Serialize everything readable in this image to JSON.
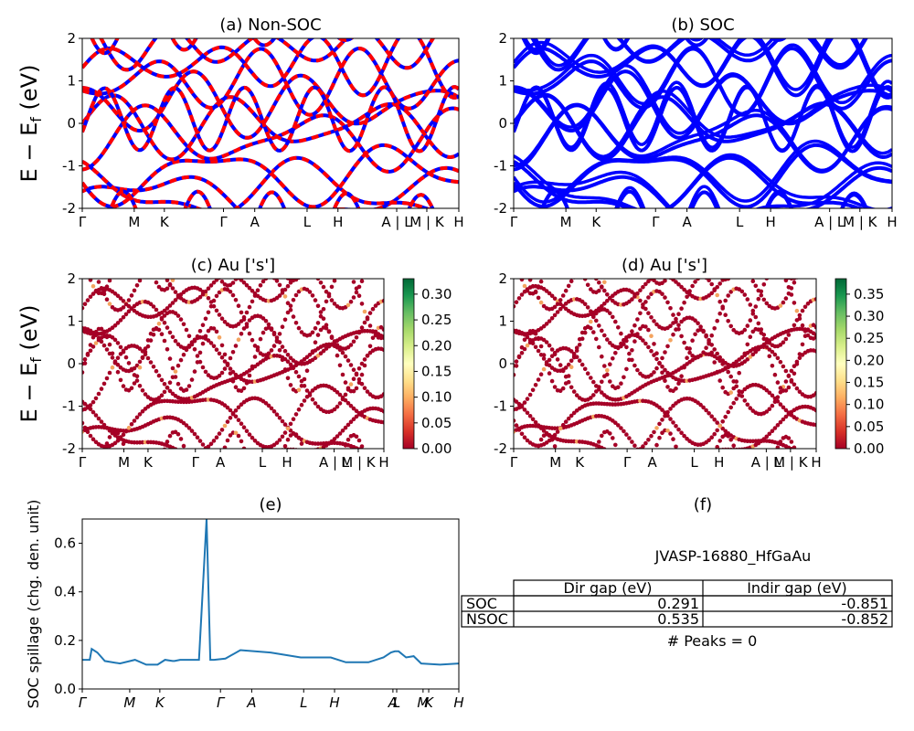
{
  "chart_data": [
    {
      "id": "a",
      "type": "line",
      "title": "(a) Non-SOC",
      "ylabel": "E − E_f (eV)",
      "ylim": [
        -2,
        2
      ],
      "yticks": [
        -2,
        -1,
        0,
        1,
        2
      ],
      "xticks": [
        "Γ",
        "M",
        "K",
        "Γ",
        "A",
        "L",
        "H",
        "A | L",
        "M | K",
        "H"
      ],
      "series": [
        {
          "color": "#0000ff"
        },
        {
          "color": "#ff0000",
          "dashed": true
        }
      ]
    },
    {
      "id": "b",
      "type": "line",
      "title": "(b) SOC",
      "ylim": [
        -2,
        2
      ],
      "yticks": [
        -2,
        -1,
        0,
        1,
        2
      ],
      "xticks": [
        "Γ",
        "M",
        "K",
        "Γ",
        "A",
        "L",
        "H",
        "A | L",
        "M | K",
        "H"
      ],
      "series": [
        {
          "color": "#0000ff"
        }
      ]
    },
    {
      "id": "c",
      "type": "scatter",
      "title": "(c)  Au ['s']",
      "ylabel": "E − E_f (eV)",
      "ylim": [
        -2,
        2
      ],
      "yticks": [
        -2,
        -1,
        0,
        1,
        2
      ],
      "xticks": [
        "Γ",
        "M",
        "K",
        "Γ",
        "A",
        "L",
        "H",
        "A | L",
        "M | K",
        "H"
      ],
      "colorbar": {
        "ticks": [
          "0.00",
          "0.05",
          "0.10",
          "0.15",
          "0.20",
          "0.25",
          "0.30"
        ],
        "max": 0.33
      }
    },
    {
      "id": "d",
      "type": "scatter",
      "title": "(d) Au ['s']",
      "ylim": [
        -2,
        2
      ],
      "yticks": [
        -2,
        -1,
        0,
        1,
        2
      ],
      "xticks": [
        "Γ",
        "M",
        "K",
        "Γ",
        "A",
        "L",
        "H",
        "A | L",
        "M | K",
        "H"
      ],
      "colorbar": {
        "ticks": [
          "0.00",
          "0.05",
          "0.10",
          "0.15",
          "0.20",
          "0.25",
          "0.30",
          "0.35"
        ],
        "max": 0.385
      }
    },
    {
      "id": "e",
      "type": "line",
      "title": "(e)",
      "ylabel": "SOC spillage (chg. den. unit)",
      "ylim": [
        0,
        0.7
      ],
      "yticks": [
        "0.0",
        "0.2",
        "0.4",
        "0.6"
      ],
      "xticks": [
        "Γ",
        "M",
        "K",
        "Γ",
        "A",
        "L",
        "H",
        "A",
        "L",
        "M",
        "K",
        "H"
      ],
      "series": [
        {
          "color": "#1f77b4",
          "x": [
            0,
            0.02,
            0.025,
            0.04,
            0.06,
            0.1,
            0.14,
            0.17,
            0.18,
            0.2,
            0.22,
            0.24,
            0.245,
            0.26,
            0.31,
            0.33,
            0.34,
            0.35,
            0.38,
            0.42,
            0.5,
            0.58,
            0.66,
            0.7,
            0.76,
            0.8,
            0.82,
            0.83,
            0.84,
            0.86,
            0.88,
            0.9,
            0.95,
            1.0
          ],
          "y": [
            0.12,
            0.12,
            0.165,
            0.15,
            0.115,
            0.105,
            0.12,
            0.1,
            0.1,
            0.1,
            0.12,
            0.115,
            0.115,
            0.12,
            0.12,
            0.7,
            0.12,
            0.12,
            0.125,
            0.16,
            0.15,
            0.13,
            0.13,
            0.11,
            0.11,
            0.13,
            0.15,
            0.155,
            0.155,
            0.13,
            0.135,
            0.105,
            0.1,
            0.105
          ]
        }
      ]
    }
  ],
  "panel_f": {
    "title": "(f)",
    "material": "JVASP-16880_HfGaAu",
    "table": {
      "headers": [
        "",
        "Dir gap (eV)",
        "Indir gap (eV)"
      ],
      "rows": [
        [
          "SOC",
          "0.291",
          "-0.851"
        ],
        [
          "NSOC",
          "0.535",
          "-0.852"
        ]
      ]
    },
    "peaks": "# Peaks = 0"
  }
}
